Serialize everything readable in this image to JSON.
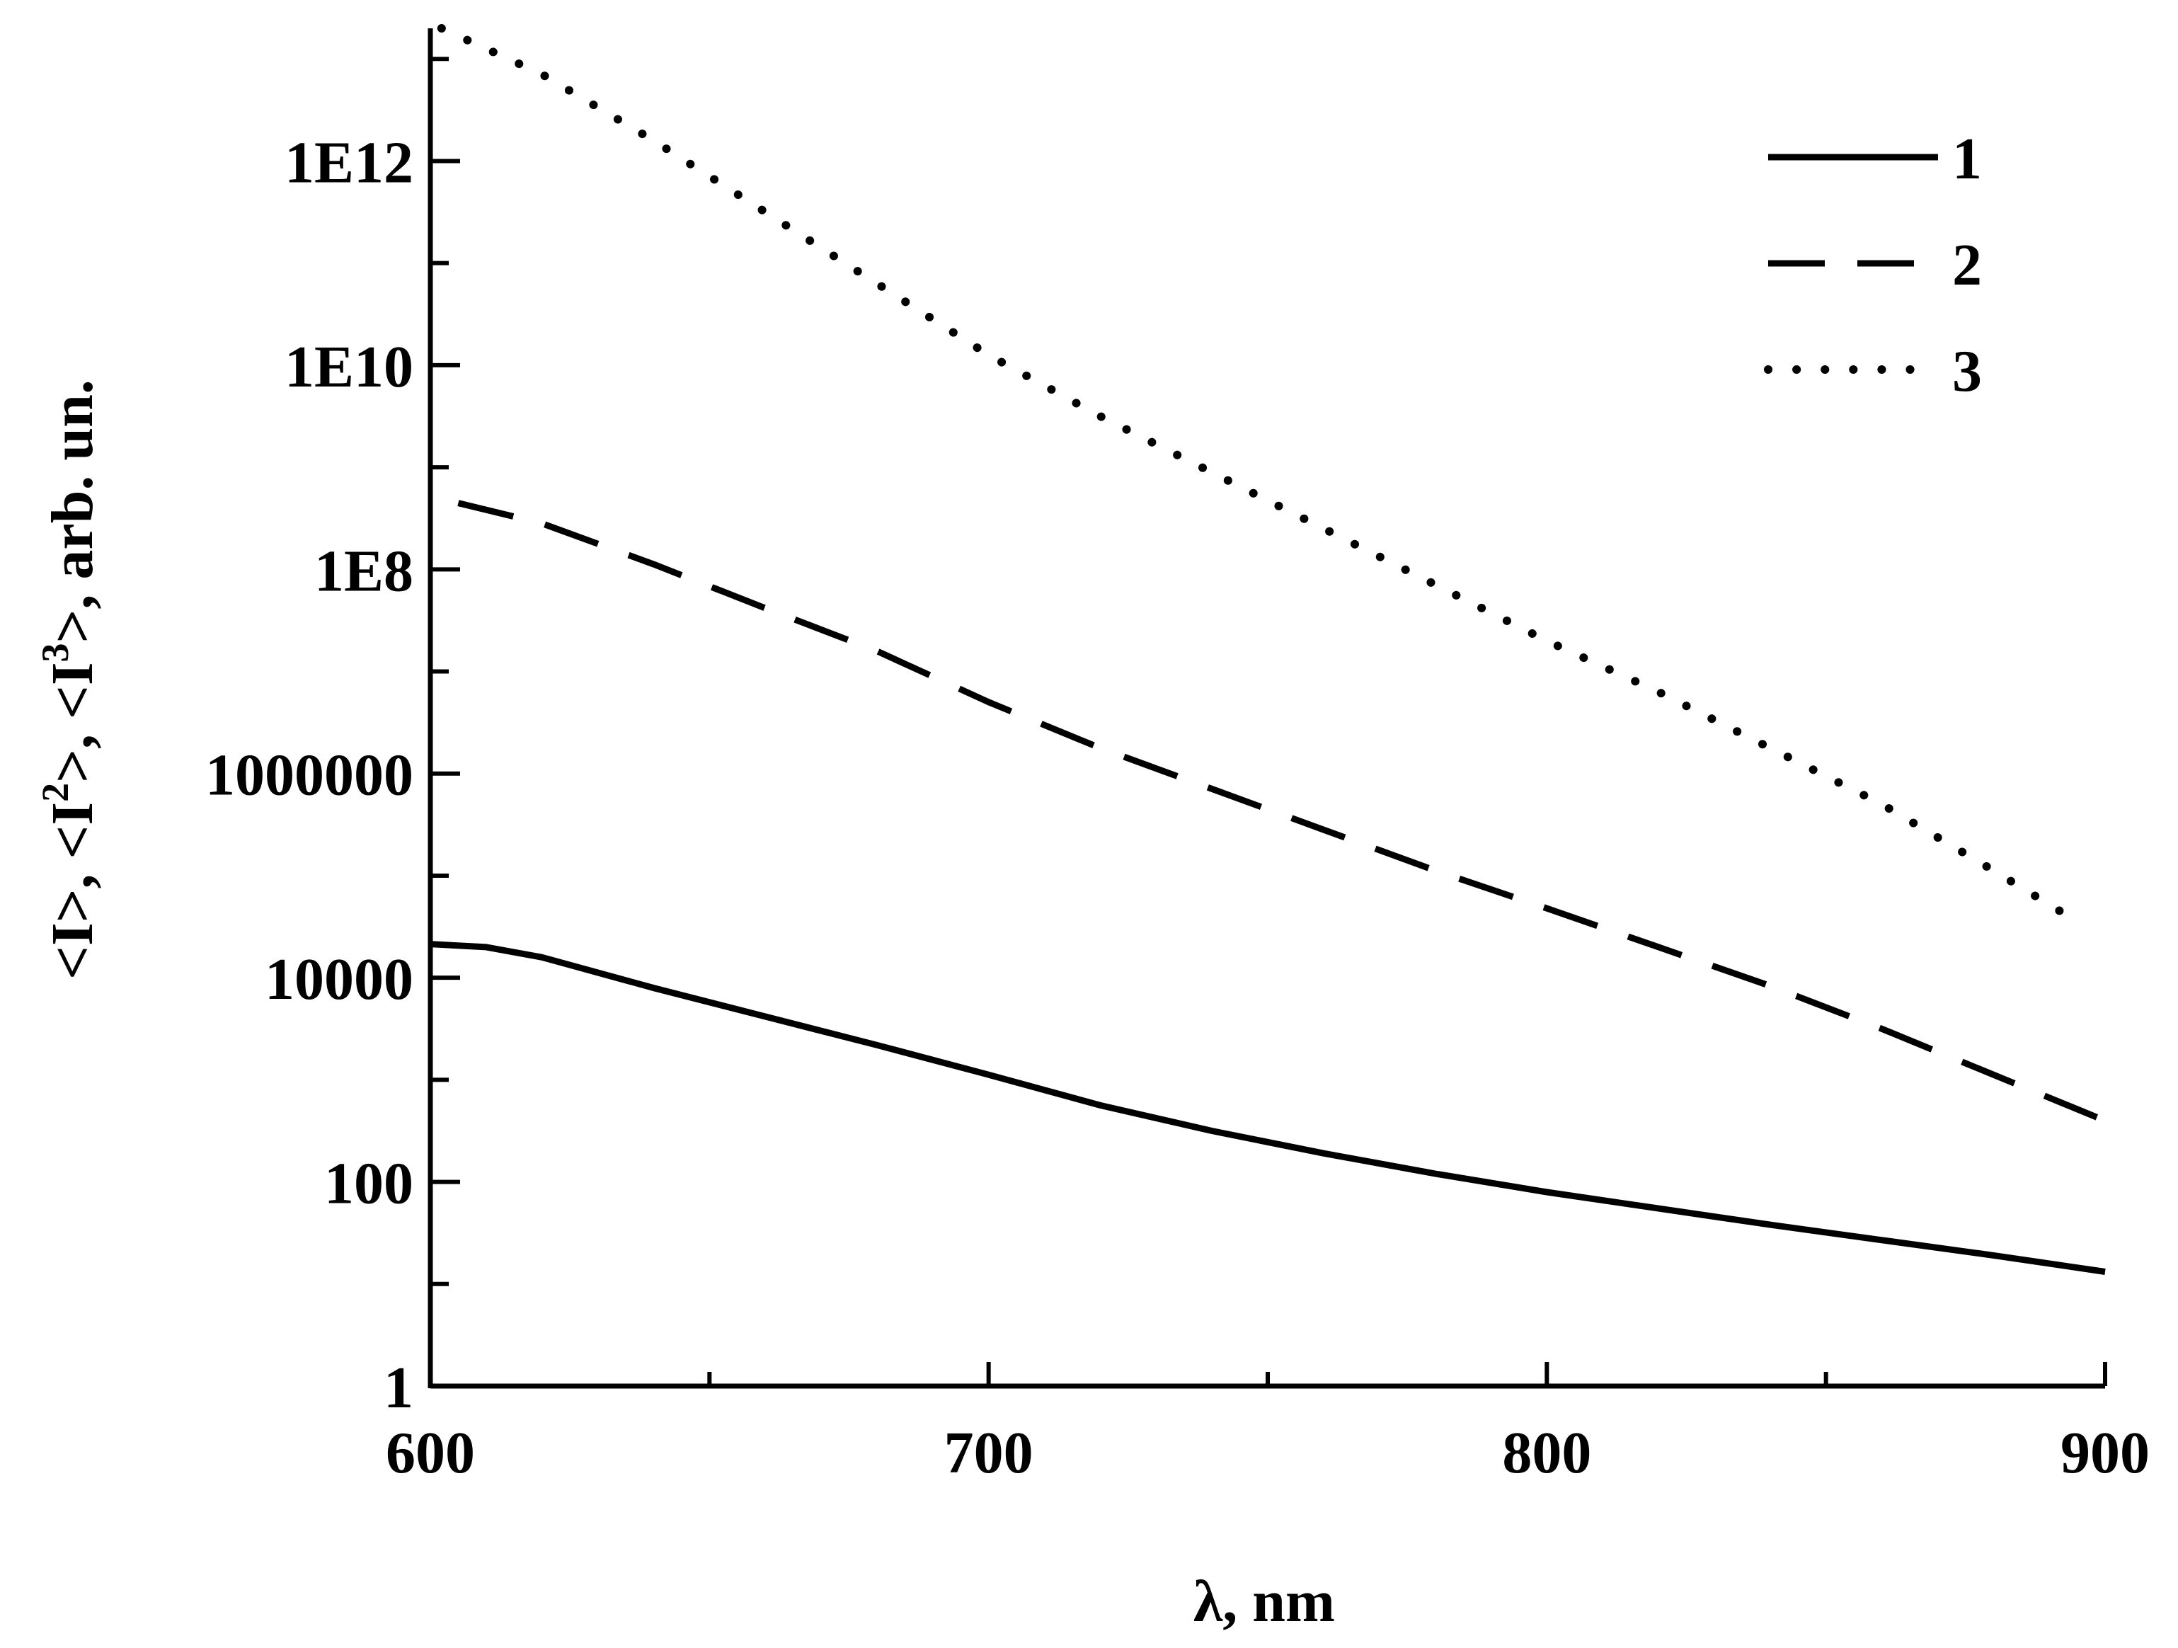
{
  "chart_data": {
    "type": "line",
    "title": "",
    "xlabel": "λ, nm",
    "ylabel": {
      "parts": [
        {
          "text": "<I>, <I",
          "sup": ""
        },
        {
          "text": ">, <I",
          "sup": "2"
        },
        {
          "text": ">, arb. un.",
          "sup": "3"
        }
      ]
    },
    "x_scale": "linear",
    "y_scale": "log",
    "xlim": [
      600,
      900
    ],
    "ylim_log10": [
      0,
      13.3
    ],
    "x_ticks": [
      600,
      700,
      800,
      900
    ],
    "x_tick_labels": [
      "600",
      "700",
      "800",
      "900"
    ],
    "x_minor_ticks": [
      650,
      750,
      850
    ],
    "y_ticks_log10": [
      0,
      2,
      4,
      6,
      8,
      10,
      12
    ],
    "y_tick_labels": [
      "1",
      "100",
      "10000",
      "1000000",
      "1E8",
      "1E10",
      "1E12"
    ],
    "y_minor_ticks_log10": [
      1,
      3,
      5,
      7,
      9,
      11,
      13
    ],
    "grid": false,
    "legend_position": "top-right",
    "series": [
      {
        "name": "1",
        "style": "solid",
        "x": [
          600,
          610,
          620,
          640,
          660,
          680,
          700,
          720,
          740,
          760,
          780,
          800,
          820,
          840,
          860,
          880,
          900
        ],
        "log10_y": [
          4.33,
          4.3,
          4.2,
          3.9,
          3.62,
          3.34,
          3.05,
          2.75,
          2.5,
          2.28,
          2.08,
          1.9,
          1.74,
          1.58,
          1.43,
          1.28,
          1.12
        ]
      },
      {
        "name": "2",
        "style": "dashed",
        "x": [
          605,
          620,
          640,
          660,
          680,
          700,
          720,
          740,
          760,
          780,
          800,
          820,
          840,
          860,
          880,
          900
        ],
        "log10_y": [
          8.65,
          8.45,
          8.05,
          7.62,
          7.2,
          6.7,
          6.25,
          5.85,
          5.45,
          5.05,
          4.68,
          4.3,
          3.92,
          3.5,
          3.05,
          2.6
        ]
      },
      {
        "name": "3",
        "style": "dotted",
        "x": [
          602,
          620,
          640,
          660,
          680,
          700,
          720,
          740,
          760,
          780,
          800,
          820,
          840,
          860,
          880,
          895
        ],
        "log10_y": [
          13.3,
          12.85,
          12.2,
          11.5,
          10.8,
          10.1,
          9.5,
          8.95,
          8.4,
          7.85,
          7.3,
          6.8,
          6.25,
          5.7,
          5.05,
          4.55
        ]
      }
    ],
    "colors": {
      "line": "#000000",
      "background": "#ffffff"
    }
  }
}
